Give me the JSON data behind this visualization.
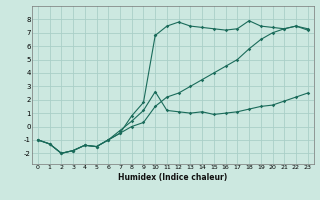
{
  "xlabel": "Humidex (Indice chaleur)",
  "background_color": "#cce8e0",
  "grid_color": "#aacfc8",
  "line_color": "#1a6b5a",
  "xlim": [
    -0.5,
    23.5
  ],
  "ylim": [
    -2.8,
    9.0
  ],
  "xticks": [
    0,
    1,
    2,
    3,
    4,
    5,
    6,
    7,
    8,
    9,
    10,
    11,
    12,
    13,
    14,
    15,
    16,
    17,
    18,
    19,
    20,
    21,
    22,
    23
  ],
  "yticks": [
    -2,
    -1,
    0,
    1,
    2,
    3,
    4,
    5,
    6,
    7,
    8
  ],
  "curve1_x": [
    0,
    1,
    2,
    3,
    4,
    5,
    6,
    7,
    8,
    9,
    10,
    11,
    12,
    13,
    14,
    15,
    16,
    17,
    18,
    19,
    20,
    21,
    22,
    23
  ],
  "curve1_y": [
    -1.0,
    -1.3,
    -2.0,
    -1.8,
    -1.4,
    -1.5,
    -1.0,
    -0.5,
    0.0,
    0.3,
    1.5,
    2.2,
    2.5,
    3.0,
    3.5,
    4.0,
    4.5,
    5.0,
    5.8,
    6.5,
    7.0,
    7.3,
    7.5,
    7.3
  ],
  "curve2_x": [
    0,
    1,
    2,
    3,
    4,
    5,
    6,
    7,
    8,
    9,
    10,
    10,
    11,
    12,
    13,
    14,
    15,
    16,
    17,
    18,
    19,
    20,
    21,
    22,
    23
  ],
  "curve2_y": [
    -1.0,
    -1.3,
    -2.0,
    -1.8,
    -1.4,
    -1.5,
    -1.0,
    -0.5,
    0.8,
    1.8,
    6.8,
    6.8,
    7.5,
    7.8,
    7.5,
    7.4,
    7.3,
    7.2,
    7.3,
    7.9,
    7.5,
    7.4,
    7.3,
    7.5,
    7.2
  ],
  "curve3_x": [
    0,
    1,
    2,
    3,
    4,
    5,
    6,
    7,
    8,
    9,
    10,
    11,
    12,
    13,
    14,
    15,
    16,
    17,
    18,
    19,
    20,
    21,
    22,
    23
  ],
  "curve3_y": [
    -1.0,
    -1.3,
    -2.0,
    -1.8,
    -1.4,
    -1.5,
    -1.0,
    -0.3,
    0.4,
    1.2,
    2.6,
    1.2,
    1.1,
    1.0,
    1.1,
    0.9,
    1.0,
    1.1,
    1.3,
    1.5,
    1.6,
    1.9,
    2.2,
    2.5
  ]
}
